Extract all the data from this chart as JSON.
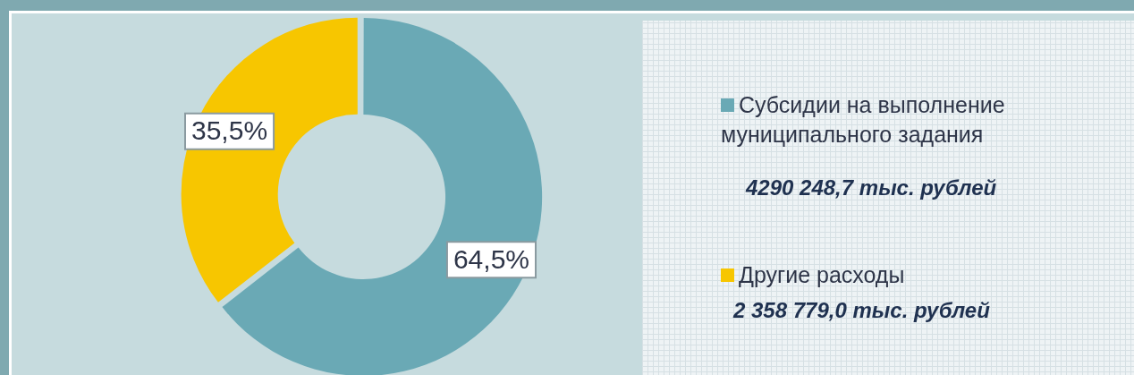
{
  "chart_data": {
    "type": "donut",
    "categories": [
      "Субсидии на выполнение муниципального задания",
      "Другие расходы"
    ],
    "values": [
      64.5,
      35.5
    ],
    "colors": [
      "#6aa9b5",
      "#f7c600"
    ],
    "value_labels": [
      "64,5%",
      "35,5%"
    ],
    "legend": "right",
    "annotations": [
      "4290 248,7 тыс. рублей",
      "2 358 779,0 тыс. рублей"
    ]
  }
}
